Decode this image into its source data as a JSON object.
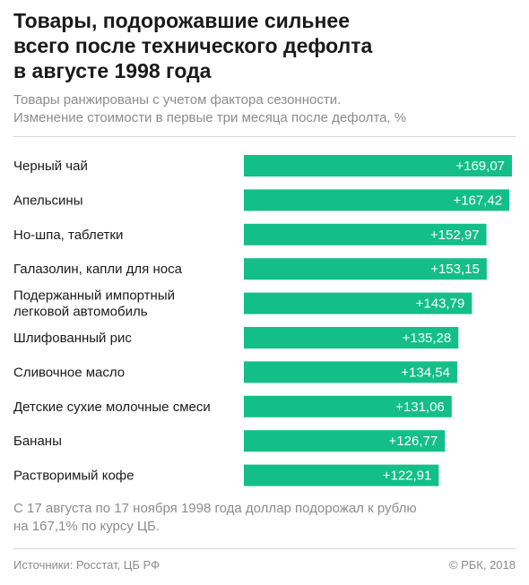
{
  "header": {
    "title_lines": [
      "Товары, подорожавшие сильнее",
      "всего после технического дефолта",
      "в августе 1998 года"
    ],
    "subtitle_lines": [
      "Товары ранжированы с учетом фактора сезонности.",
      "Изменение стоимости в первые три месяца после дефолта, %"
    ]
  },
  "chart_data": {
    "type": "bar",
    "orientation": "horizontal",
    "categories": [
      [
        "Черный чай"
      ],
      [
        "Апельсины"
      ],
      [
        "Но-шпа, таблетки"
      ],
      [
        "Галазолин, капли для носа"
      ],
      [
        "Подержанный импортный",
        "легковой автомобиль"
      ],
      [
        "Шлифованный рис"
      ],
      [
        "Сливочное масло"
      ],
      [
        "Детские сухие молочные смеси"
      ],
      [
        "Бананы"
      ],
      [
        "Растворимый кофе"
      ]
    ],
    "values": [
      169.07,
      167.42,
      152.97,
      153.15,
      143.79,
      135.28,
      134.54,
      131.06,
      126.77,
      122.91
    ],
    "value_labels": [
      "+169,07",
      "+167,42",
      "+152,97",
      "+153,15",
      "+143,79",
      "+135,28",
      "+134,54",
      "+131,06",
      "+126,77",
      "+122,91"
    ],
    "bar_color": "#13bf86",
    "grid": false,
    "legend": "none"
  },
  "footer": {
    "note_lines": [
      "С 17 августа по 17 ноября 1998 года доллар подорожал к рублю",
      "на 167,1% по курсу ЦБ."
    ],
    "source": "Источники: Росстат, ЦБ РФ",
    "copyright": "© РБК, 2018"
  }
}
